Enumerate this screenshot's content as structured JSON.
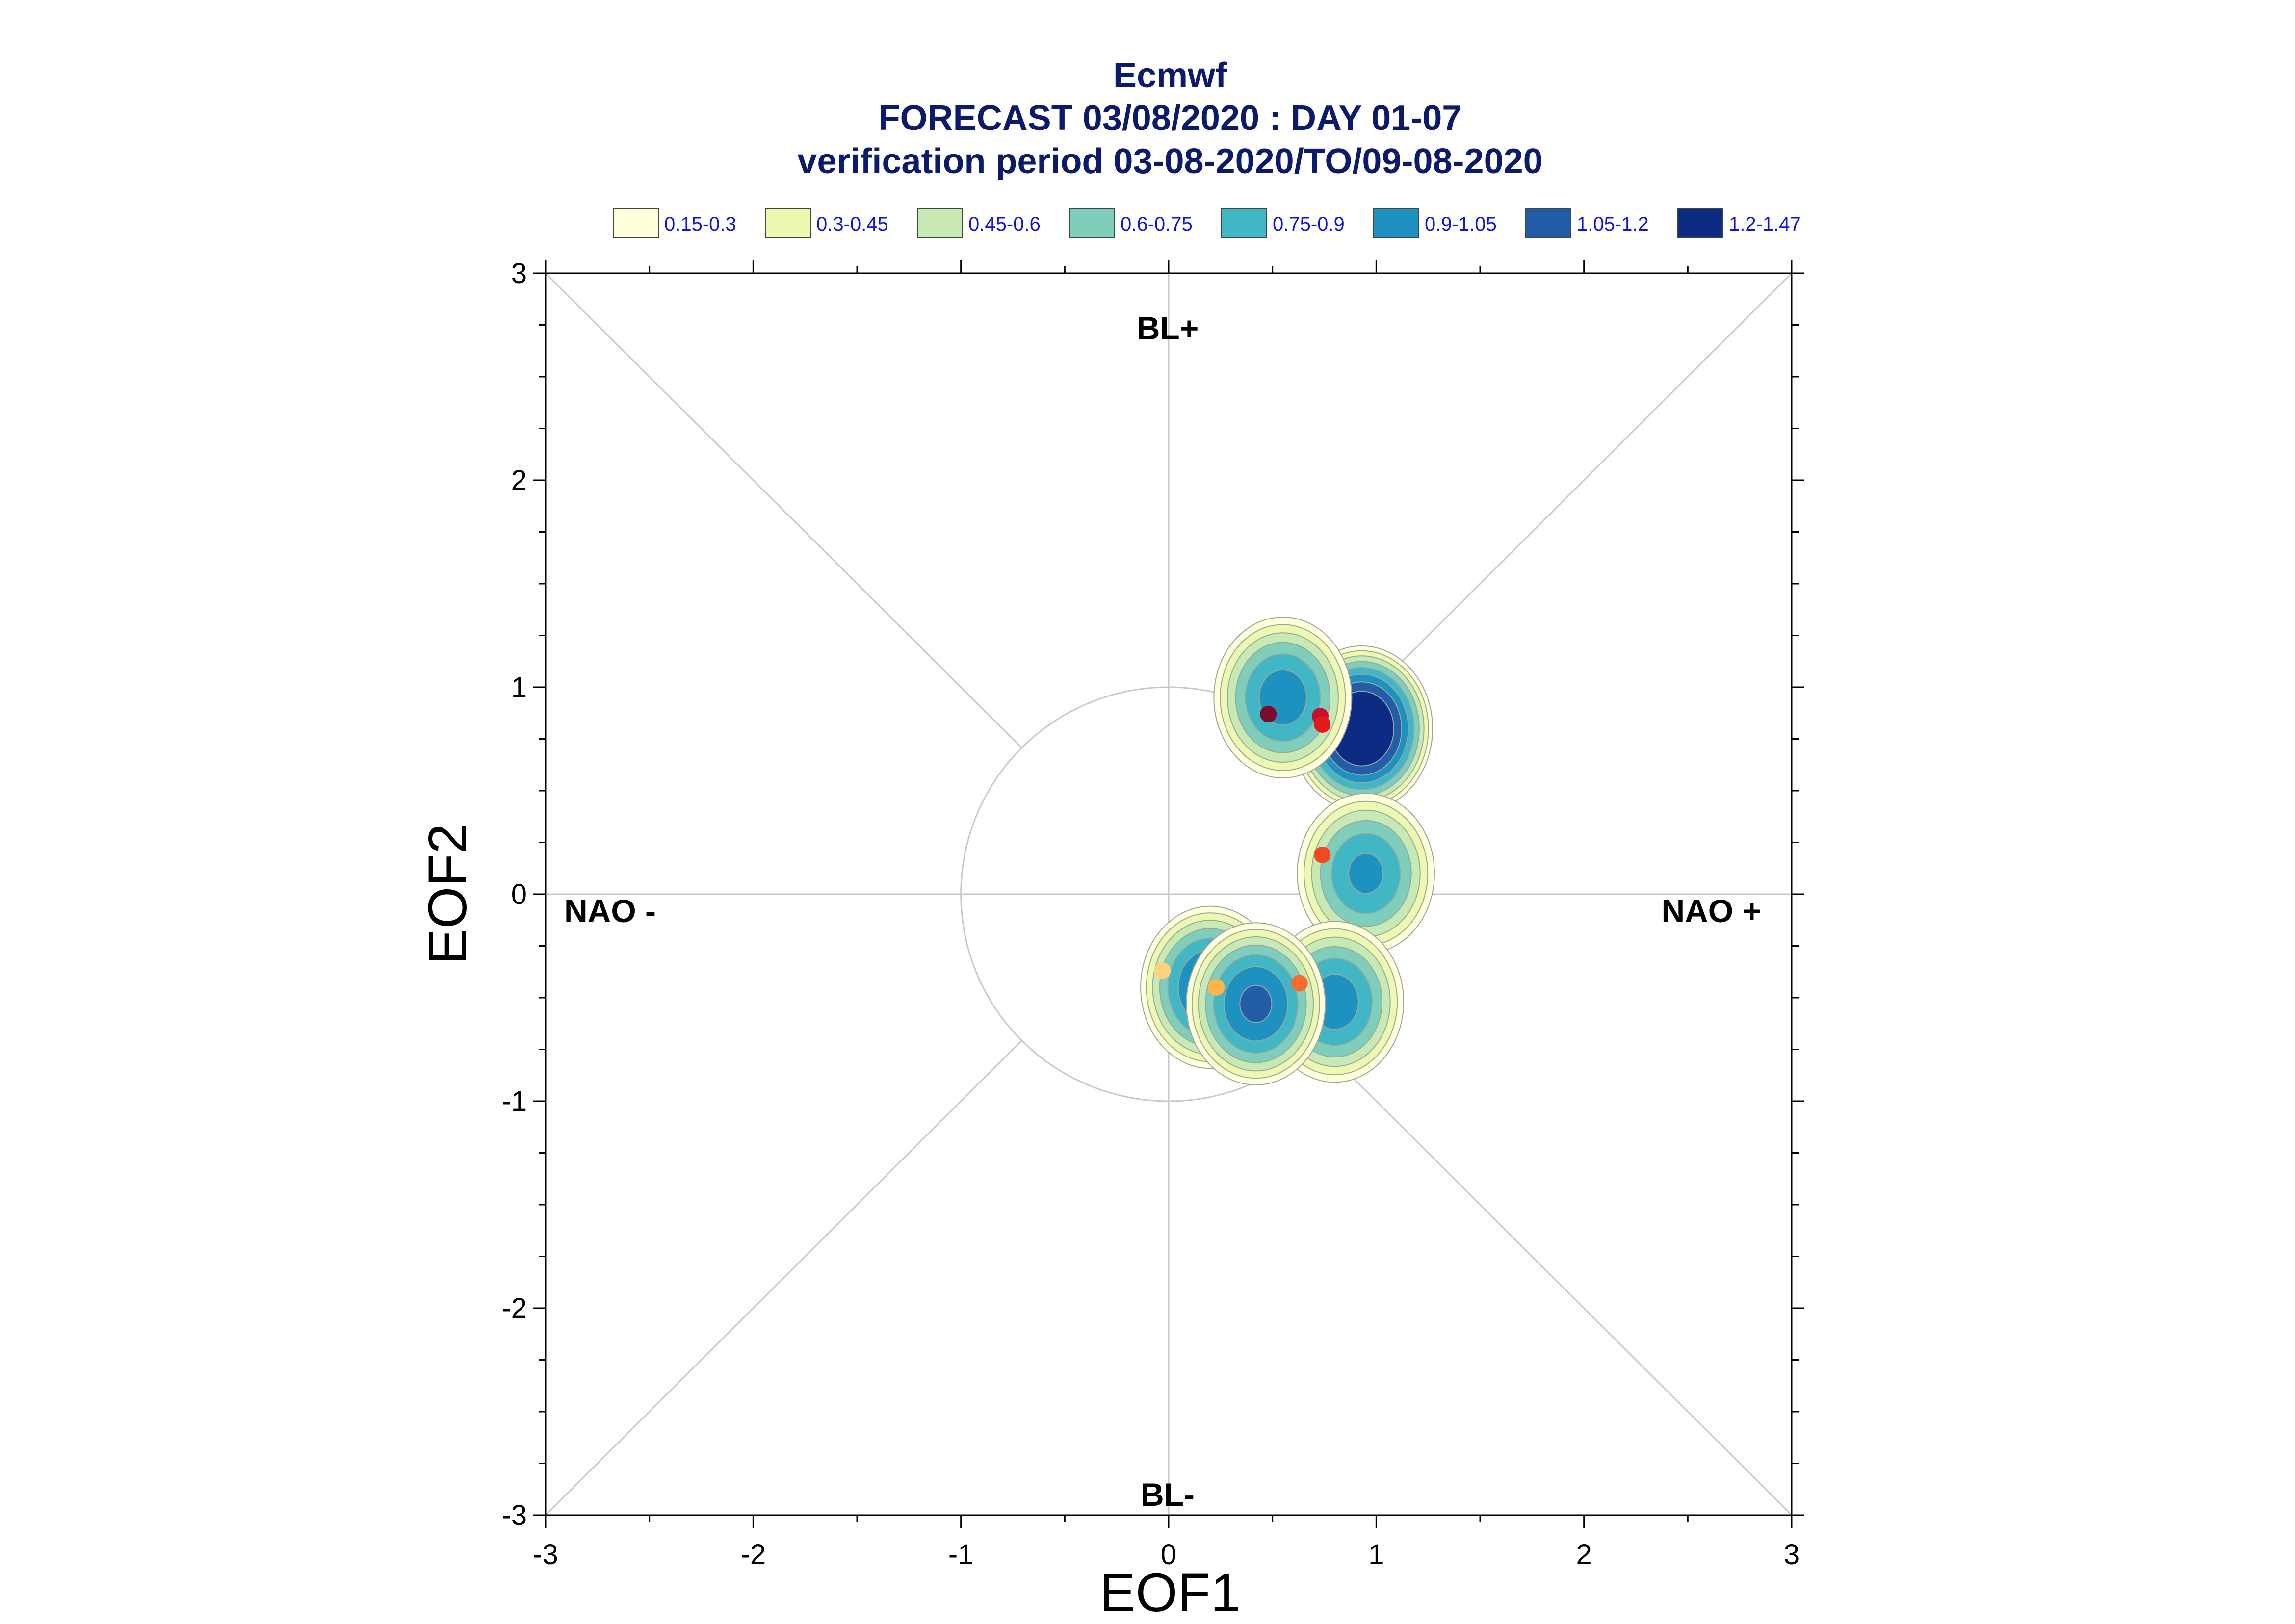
{
  "chart_data": {
    "type": "contour-scatter",
    "title": "Ecmwf",
    "subtitle": "FORECAST 03/08/2020 : DAY 01-07",
    "period": "verification period 03-08-2020/TO/09-08-2020",
    "xlabel": "EOF1",
    "ylabel": "EOF2",
    "xlim": [
      -3,
      3
    ],
    "ylim": [
      -3,
      3
    ],
    "xticks": [
      "-3",
      "-2",
      "-1",
      "0",
      "1",
      "2",
      "3"
    ],
    "yticks": [
      "-3",
      "-2",
      "-1",
      "0",
      "1",
      "2",
      "3"
    ],
    "regime_labels": {
      "top": "BL+",
      "bottom": "BL-",
      "left": "NAO -",
      "right": "NAO +"
    },
    "unit_circle_radius": 1,
    "legend": [
      {
        "label": "0.15-0.3",
        "color": "#ffffd9"
      },
      {
        "label": "0.3-0.45",
        "color": "#edf8b1"
      },
      {
        "label": "0.45-0.6",
        "color": "#c7e9b4"
      },
      {
        "label": "0.6-0.75",
        "color": "#7fcdbb"
      },
      {
        "label": "0.75-0.9",
        "color": "#41b6c4"
      },
      {
        "label": "0.9-1.05",
        "color": "#1d91c0"
      },
      {
        "label": "1.05-1.2",
        "color": "#225ea8"
      },
      {
        "label": "1.2-1.47",
        "color": "#0c2c84"
      }
    ],
    "density_centers": [
      {
        "x": 0.93,
        "y": 0.8,
        "peak": 1.47
      },
      {
        "x": 0.55,
        "y": 0.95,
        "peak": 1.0
      },
      {
        "x": 0.95,
        "y": 0.1,
        "peak": 0.95
      },
      {
        "x": 0.8,
        "y": -0.52,
        "peak": 1.0
      },
      {
        "x": 0.2,
        "y": -0.45,
        "peak": 1.1
      },
      {
        "x": 0.42,
        "y": -0.53,
        "peak": 1.1
      }
    ],
    "daily_points": [
      {
        "x": 0.48,
        "y": 0.87,
        "color": "#7a0c2e"
      },
      {
        "x": 0.73,
        "y": 0.86,
        "color": "#c8102e"
      },
      {
        "x": 0.74,
        "y": 0.82,
        "color": "#e31a1c"
      },
      {
        "x": 0.74,
        "y": 0.19,
        "color": "#f04a22"
      },
      {
        "x": 0.63,
        "y": -0.43,
        "color": "#f46d2f"
      },
      {
        "x": 0.23,
        "y": -0.45,
        "color": "#fdb54a"
      },
      {
        "x": -0.03,
        "y": -0.37,
        "color": "#fed27a"
      }
    ]
  }
}
